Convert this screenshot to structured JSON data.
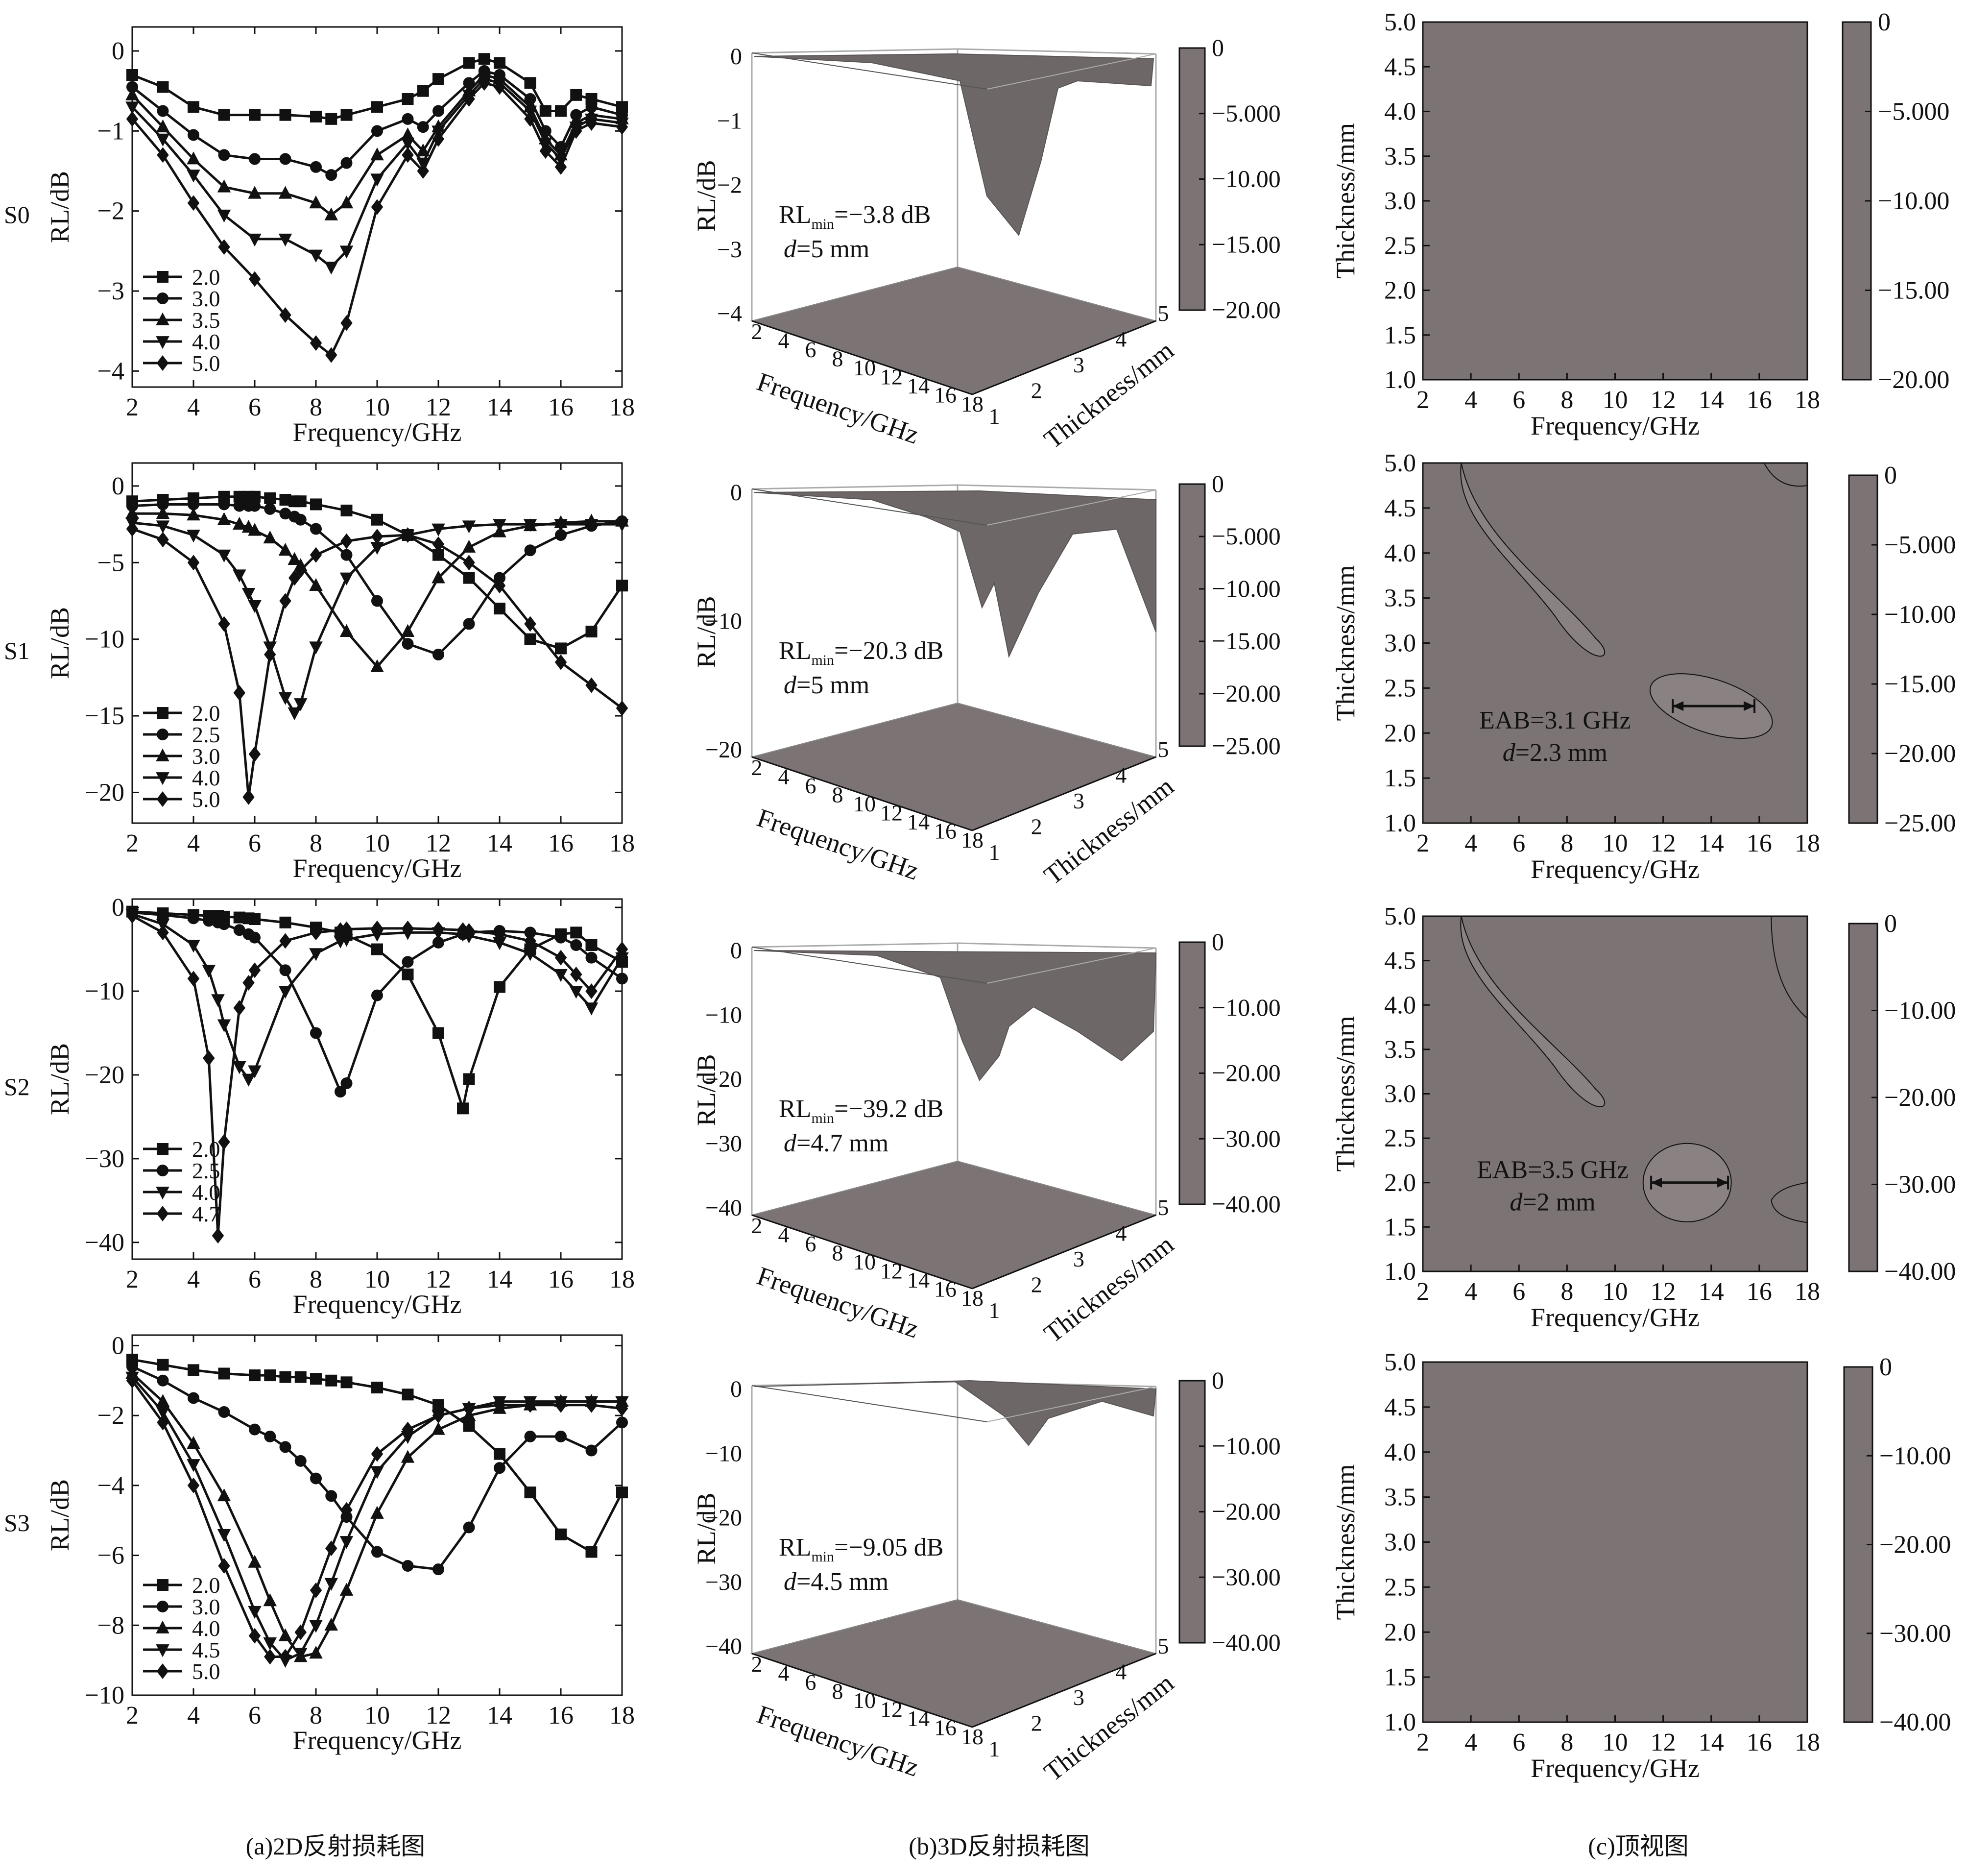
{
  "figure": {
    "row_labels": [
      "S0",
      "S1",
      "S2",
      "S3"
    ],
    "panel_captions": [
      "(a)2D反射损耗图",
      "(b)3D反射损耗图",
      "(c)顶视图"
    ],
    "colors": {
      "ink": "#111111",
      "surface": "#7c7474",
      "surface_dark": "#6e6767",
      "surface_light": "#8a8282"
    },
    "panels_3d": [
      {
        "ylabel": "RL/dB",
        "xlabel": "Frequency/GHz",
        "zlabel": "Thickness/mm",
        "annotation": {
          "rl_prefix": "RL",
          "rl_sub": "min",
          "rl_value": "=−3.8 dB",
          "d_prefix": "d",
          "d_value": "=5 mm"
        },
        "zticks": [
          "0",
          "−1",
          "−2",
          "−3",
          "−4"
        ],
        "colorbar_ticks": [
          "0",
          "−5.000",
          "−10.00",
          "−15.00",
          "−20.00"
        ]
      },
      {
        "ylabel": "RL/dB",
        "xlabel": "Frequency/GHz",
        "zlabel": "Thickness/mm",
        "annotation": {
          "rl_prefix": "RL",
          "rl_sub": "min",
          "rl_value": "=−20.3 dB",
          "d_prefix": "d",
          "d_value": "=5 mm"
        },
        "zticks": [
          "0",
          "−10",
          "−20"
        ],
        "colorbar_ticks": [
          "0",
          "−5.000",
          "−10.00",
          "−15.00",
          "−20.00",
          "−25.00"
        ]
      },
      {
        "ylabel": "RL/dB",
        "xlabel": "Frequency/GHz",
        "zlabel": "Thickness/mm",
        "annotation": {
          "rl_prefix": "RL",
          "rl_sub": "min",
          "rl_value": "=−39.2 dB",
          "d_prefix": "d",
          "d_value": "=4.7 mm"
        },
        "zticks": [
          "0",
          "−10",
          "−20",
          "−30",
          "−40"
        ],
        "colorbar_ticks": [
          "0",
          "−10.00",
          "−20.00",
          "−30.00",
          "−40.00"
        ]
      },
      {
        "ylabel": "RL/dB",
        "xlabel": "Frequency/GHz",
        "zlabel": "Thickness/mm",
        "annotation": {
          "rl_prefix": "RL",
          "rl_sub": "min",
          "rl_value": "=−9.05 dB",
          "d_prefix": "d",
          "d_value": "=4.5 mm"
        },
        "zticks": [
          "0",
          "−10",
          "−20",
          "−30",
          "−40"
        ],
        "colorbar_ticks": [
          "0",
          "−10.00",
          "−20.00",
          "−30.00",
          "−40.00"
        ]
      }
    ],
    "panels_top": [
      {
        "xlabel": "Frequency/GHz",
        "ylabel": "Thickness/mm",
        "colorbar_ticks": [
          "0",
          "−5.000",
          "−10.00",
          "−15.00",
          "−20.00"
        ],
        "eab": null
      },
      {
        "xlabel": "Frequency/GHz",
        "ylabel": "Thickness/mm",
        "colorbar_ticks": [
          "0",
          "−5.000",
          "−10.00",
          "−15.00",
          "−20.00",
          "−25.00"
        ],
        "eab": {
          "text": "EAB=3.1 GHz",
          "d_prefix": "d",
          "d_value": "=2.3 mm"
        }
      },
      {
        "xlabel": "Frequency/GHz",
        "ylabel": "Thickness/mm",
        "colorbar_ticks": [
          "0",
          "−10.00",
          "−20.00",
          "−30.00",
          "−40.00"
        ],
        "eab": {
          "text": "EAB=3.5 GHz",
          "d_prefix": "d",
          "d_value": "=2 mm"
        }
      },
      {
        "xlabel": "Frequency/GHz",
        "ylabel": "Thickness/mm",
        "colorbar_ticks": [
          "0",
          "−10.00",
          "−20.00",
          "−30.00",
          "−40.00"
        ],
        "eab": null
      }
    ],
    "top_xticks": [
      "2",
      "4",
      "6",
      "8",
      "10",
      "12",
      "14",
      "16",
      "18"
    ],
    "top_yticks": [
      "1.0",
      "1.5",
      "2.0",
      "2.5",
      "3.0",
      "3.5",
      "4.0",
      "4.5",
      "5.0"
    ],
    "panel3d_xticks": [
      "2",
      "4",
      "6",
      "8",
      "10",
      "12",
      "14",
      "16",
      "18"
    ],
    "panel3d_thickticks": [
      "1",
      "2",
      "3",
      "4",
      "5"
    ]
  },
  "chart_data": [
    {
      "type": "line",
      "sample": "S0",
      "xlabel": "Frequency/GHz",
      "ylabel": "RL/dB",
      "xlim": [
        2,
        18
      ],
      "ylim": [
        -4.2,
        0.3
      ],
      "xticks": [
        2,
        4,
        6,
        8,
        10,
        12,
        14,
        16,
        18
      ],
      "yticks": [
        0,
        -1,
        -2,
        -3,
        -4
      ],
      "yticklabels": [
        "0",
        "−1",
        "−2",
        "−3",
        "−4"
      ],
      "x": [
        2,
        3,
        4,
        5,
        6,
        7,
        8,
        8.5,
        9,
        10,
        11,
        11.5,
        12,
        13,
        13.5,
        14,
        15,
        15.5,
        16,
        16.5,
        17,
        18
      ],
      "series": [
        {
          "name": "2.0",
          "marker": "square",
          "values": [
            -0.3,
            -0.45,
            -0.7,
            -0.8,
            -0.8,
            -0.8,
            -0.82,
            -0.85,
            -0.8,
            -0.7,
            -0.6,
            -0.5,
            -0.35,
            -0.15,
            -0.1,
            -0.15,
            -0.4,
            -0.75,
            -0.75,
            -0.55,
            -0.6,
            -0.7
          ]
        },
        {
          "name": "3.0",
          "marker": "circle",
          "values": [
            -0.45,
            -0.75,
            -1.05,
            -1.3,
            -1.35,
            -1.35,
            -1.45,
            -1.55,
            -1.4,
            -1.0,
            -0.85,
            -0.95,
            -0.75,
            -0.4,
            -0.25,
            -0.3,
            -0.6,
            -1.0,
            -1.2,
            -0.8,
            -0.7,
            -0.8
          ]
        },
        {
          "name": "3.5",
          "marker": "triangle",
          "values": [
            -0.55,
            -0.95,
            -1.35,
            -1.7,
            -1.78,
            -1.78,
            -1.9,
            -2.05,
            -1.9,
            -1.3,
            -1.05,
            -1.25,
            -0.95,
            -0.5,
            -0.3,
            -0.35,
            -0.7,
            -1.1,
            -1.3,
            -0.9,
            -0.8,
            -0.85
          ]
        },
        {
          "name": "4.0",
          "marker": "tri-down",
          "values": [
            -0.7,
            -1.1,
            -1.55,
            -2.05,
            -2.35,
            -2.35,
            -2.55,
            -2.7,
            -2.5,
            -1.6,
            -1.15,
            -1.4,
            -1.0,
            -0.55,
            -0.35,
            -0.4,
            -0.75,
            -1.15,
            -1.35,
            -0.95,
            -0.85,
            -0.9
          ]
        },
        {
          "name": "5.0",
          "marker": "diamond",
          "values": [
            -0.85,
            -1.3,
            -1.9,
            -2.45,
            -2.85,
            -3.3,
            -3.65,
            -3.8,
            -3.4,
            -1.95,
            -1.3,
            -1.5,
            -1.1,
            -0.6,
            -0.4,
            -0.45,
            -0.85,
            -1.25,
            -1.45,
            -1.0,
            -0.9,
            -0.95
          ]
        }
      ]
    },
    {
      "type": "line",
      "sample": "S1",
      "xlabel": "Frequency/GHz",
      "ylabel": "RL/dB",
      "xlim": [
        2,
        18
      ],
      "ylim": [
        -22,
        1.5
      ],
      "xticks": [
        2,
        4,
        6,
        8,
        10,
        12,
        14,
        16,
        18
      ],
      "yticks": [
        0,
        -5,
        -10,
        -15,
        -20
      ],
      "yticklabels": [
        "0",
        "−5",
        "−10",
        "−15",
        "−20"
      ],
      "x": [
        2,
        3,
        4,
        5,
        5.5,
        5.8,
        6,
        6.5,
        7,
        7.3,
        7.5,
        8,
        9,
        10,
        11,
        12,
        13,
        14,
        15,
        16,
        17,
        18
      ],
      "series": [
        {
          "name": "2.0",
          "marker": "square",
          "values": [
            -1.0,
            -0.9,
            -0.8,
            -0.7,
            -0.7,
            -0.7,
            -0.7,
            -0.8,
            -0.9,
            -1.0,
            -1.0,
            -1.2,
            -1.6,
            -2.2,
            -3.2,
            -4.5,
            -6.0,
            -8.0,
            -10.0,
            -10.6,
            -9.5,
            -6.5
          ]
        },
        {
          "name": "2.5",
          "marker": "circle",
          "values": [
            -1.3,
            -1.2,
            -1.2,
            -1.2,
            -1.3,
            -1.3,
            -1.3,
            -1.5,
            -1.8,
            -2.0,
            -2.2,
            -2.8,
            -4.5,
            -7.5,
            -10.3,
            -11.0,
            -9.0,
            -6.0,
            -4.2,
            -3.2,
            -2.6,
            -2.3
          ]
        },
        {
          "name": "3.0",
          "marker": "triangle",
          "values": [
            -1.8,
            -1.8,
            -1.9,
            -2.2,
            -2.5,
            -2.7,
            -2.9,
            -3.4,
            -4.2,
            -4.8,
            -5.2,
            -6.5,
            -9.5,
            -11.8,
            -9.5,
            -6.0,
            -4.0,
            -3.0,
            -2.6,
            -2.4,
            -2.3,
            -2.3
          ]
        },
        {
          "name": "4.0",
          "marker": "tri-down",
          "values": [
            -2.4,
            -2.6,
            -3.2,
            -4.5,
            -5.8,
            -7.0,
            -7.8,
            -10.5,
            -13.8,
            -14.8,
            -14.2,
            -10.5,
            -6.0,
            -4.0,
            -3.2,
            -2.8,
            -2.6,
            -2.5,
            -2.5,
            -2.5,
            -2.5,
            -2.5
          ]
        },
        {
          "name": "5.0",
          "marker": "diamond",
          "values": [
            -2.8,
            -3.5,
            -5.0,
            -9.0,
            -13.5,
            -20.3,
            -17.5,
            -11.0,
            -7.5,
            -6.0,
            -5.5,
            -4.5,
            -3.6,
            -3.3,
            -3.2,
            -3.8,
            -5.0,
            -6.5,
            -9.0,
            -11.5,
            -13.0,
            -14.5
          ]
        }
      ]
    },
    {
      "type": "line",
      "sample": "S2",
      "xlabel": "Frequency/GHz",
      "ylabel": "RL/dB",
      "xlim": [
        2,
        18
      ],
      "ylim": [
        -42,
        1
      ],
      "xticks": [
        2,
        4,
        6,
        8,
        10,
        12,
        14,
        16,
        18
      ],
      "yticks": [
        0,
        -10,
        -20,
        -30,
        -40
      ],
      "yticklabels": [
        "0",
        "−10",
        "−20",
        "−30",
        "−40"
      ],
      "x": [
        2,
        3,
        4,
        4.5,
        4.8,
        5,
        5.5,
        5.8,
        6,
        7,
        8,
        8.8,
        9,
        10,
        11,
        12,
        12.8,
        13,
        14,
        15,
        16,
        16.5,
        17,
        18
      ],
      "series": [
        {
          "name": "2.0",
          "marker": "square",
          "values": [
            -0.5,
            -0.7,
            -0.9,
            -1.0,
            -1.0,
            -1.1,
            -1.2,
            -1.3,
            -1.4,
            -1.8,
            -2.4,
            -3.0,
            -3.3,
            -5.0,
            -8.0,
            -15.0,
            -24.0,
            -20.5,
            -9.5,
            -5.0,
            -3.2,
            -3.0,
            -4.5,
            -6.5
          ]
        },
        {
          "name": "2.5",
          "marker": "circle",
          "values": [
            -0.6,
            -0.9,
            -1.3,
            -1.6,
            -1.8,
            -2.0,
            -2.7,
            -3.2,
            -3.6,
            -7.5,
            -15.0,
            -22.0,
            -21.0,
            -10.5,
            -6.5,
            -4.2,
            -3.2,
            -3.0,
            -2.8,
            -3.0,
            -3.6,
            -4.5,
            -6.0,
            -8.5
          ]
        },
        {
          "name": "4.0",
          "marker": "tri-down",
          "values": [
            -0.8,
            -2.0,
            -4.5,
            -7.5,
            -11.0,
            -14.0,
            -19.0,
            -20.5,
            -19.5,
            -10.0,
            -5.5,
            -4.0,
            -3.8,
            -3.2,
            -3.0,
            -3.0,
            -3.2,
            -3.4,
            -4.2,
            -5.5,
            -8.0,
            -10.0,
            -12.0,
            -6.0
          ]
        },
        {
          "name": "4.7",
          "marker": "diamond",
          "values": [
            -1.0,
            -3.0,
            -8.5,
            -18.0,
            -39.2,
            -28.0,
            -12.0,
            -9.0,
            -7.5,
            -4.0,
            -3.0,
            -2.7,
            -2.6,
            -2.5,
            -2.5,
            -2.6,
            -2.7,
            -2.8,
            -3.2,
            -4.0,
            -6.0,
            -8.0,
            -10.0,
            -5.0
          ]
        }
      ]
    },
    {
      "type": "line",
      "sample": "S3",
      "xlabel": "Frequency/GHz",
      "ylabel": "RL/dB",
      "xlim": [
        2,
        18
      ],
      "ylim": [
        -10,
        0.3
      ],
      "xticks": [
        2,
        4,
        6,
        8,
        10,
        12,
        14,
        16,
        18
      ],
      "yticks": [
        0,
        -2,
        -4,
        -6,
        -8,
        -10
      ],
      "yticklabels": [
        "0",
        "−2",
        "−4",
        "−6",
        "−8",
        "−10"
      ],
      "x": [
        2,
        3,
        4,
        5,
        6,
        6.5,
        7,
        7.5,
        8,
        8.5,
        9,
        10,
        11,
        12,
        13,
        14,
        15,
        16,
        17,
        18
      ],
      "series": [
        {
          "name": "2.0",
          "marker": "square",
          "values": [
            -0.4,
            -0.55,
            -0.7,
            -0.8,
            -0.85,
            -0.85,
            -0.9,
            -0.9,
            -0.95,
            -1.0,
            -1.05,
            -1.2,
            -1.4,
            -1.7,
            -2.3,
            -3.1,
            -4.2,
            -5.4,
            -5.9,
            -4.2
          ]
        },
        {
          "name": "3.0",
          "marker": "circle",
          "values": [
            -0.6,
            -1.0,
            -1.5,
            -1.9,
            -2.4,
            -2.6,
            -2.9,
            -3.3,
            -3.8,
            -4.3,
            -4.9,
            -5.9,
            -6.3,
            -6.4,
            -5.2,
            -3.5,
            -2.6,
            -2.6,
            -3.0,
            -2.2
          ]
        },
        {
          "name": "4.0",
          "marker": "triangle",
          "values": [
            -0.8,
            -1.6,
            -2.8,
            -4.3,
            -6.2,
            -7.3,
            -8.3,
            -8.9,
            -8.8,
            -8.0,
            -7.0,
            -4.8,
            -3.2,
            -2.4,
            -2.0,
            -1.8,
            -1.7,
            -1.6,
            -1.6,
            -1.6
          ]
        },
        {
          "name": "4.5",
          "marker": "tri-down",
          "values": [
            -0.9,
            -1.9,
            -3.4,
            -5.4,
            -7.6,
            -8.5,
            -9.0,
            -8.8,
            -8.0,
            -6.8,
            -5.6,
            -3.6,
            -2.6,
            -2.0,
            -1.8,
            -1.6,
            -1.6,
            -1.6,
            -1.6,
            -1.6
          ]
        },
        {
          "name": "5.0",
          "marker": "diamond",
          "values": [
            -1.0,
            -2.2,
            -4.0,
            -6.3,
            -8.3,
            -8.9,
            -8.9,
            -8.2,
            -7.0,
            -5.8,
            -4.7,
            -3.1,
            -2.4,
            -2.0,
            -1.8,
            -1.7,
            -1.7,
            -1.7,
            -1.7,
            -1.8
          ]
        }
      ]
    }
  ]
}
